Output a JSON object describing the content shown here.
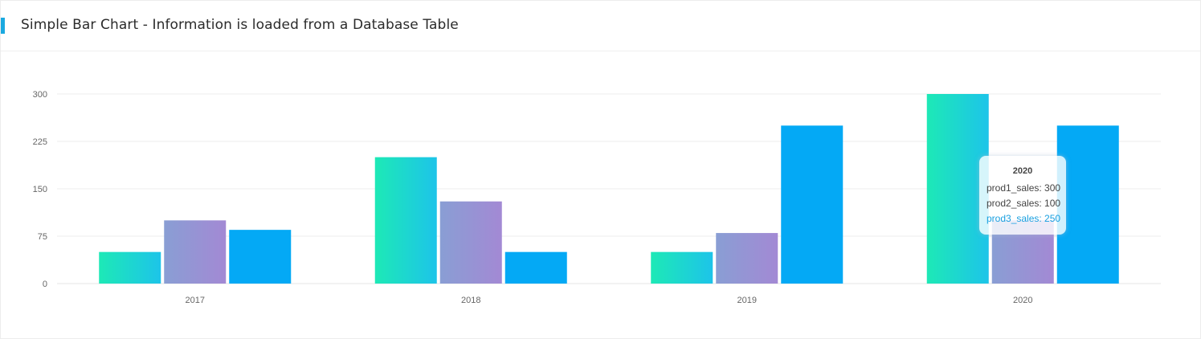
{
  "header": {
    "title": "Simple Bar Chart - Information is loaded from a Database Table"
  },
  "chart_data": {
    "type": "bar",
    "title": "",
    "xlabel": "",
    "ylabel": "",
    "categories": [
      "2017",
      "2018",
      "2019",
      "2020"
    ],
    "series": [
      {
        "key": "prod1_sales",
        "values": [
          50,
          200,
          50,
          300
        ],
        "gradient": [
          "#1de9b6",
          "#1dc4e9"
        ]
      },
      {
        "key": "prod2_sales",
        "values": [
          100,
          130,
          80,
          100
        ],
        "gradient": [
          "#899ed4",
          "#a389d4"
        ]
      },
      {
        "key": "prod3_sales",
        "values": [
          85,
          50,
          250,
          250
        ],
        "color": "#04a9f5"
      }
    ],
    "yticks": [
      "0",
      "75",
      "150",
      "225",
      "300"
    ],
    "ylim": [
      0,
      300
    ],
    "grid": true,
    "legend": "none"
  },
  "tooltip": {
    "title": "2020",
    "rows": [
      {
        "label": "prod1_sales",
        "value": "300",
        "text": "prod1_sales: 300"
      },
      {
        "label": "prod2_sales",
        "value": "100",
        "text": "prod2_sales: 100"
      },
      {
        "label": "prod3_sales",
        "value": "250",
        "text": "prod3_sales: 250"
      }
    ],
    "highlight_color": "#1aa0e0"
  },
  "colors": {
    "accent": "#1aa9e0",
    "grid": "#eeeeee"
  }
}
